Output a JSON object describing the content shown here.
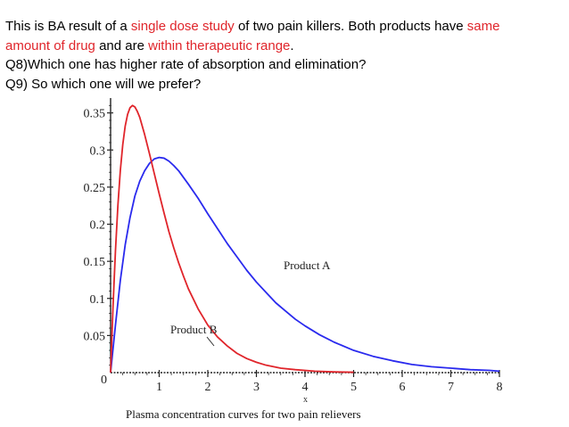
{
  "slide": {
    "line1": {
      "before": "This is BA result of a ",
      "hl1": "single dose study",
      "middle": " of two pain killers. Both products have ",
      "hl2": "same"
    },
    "line2": {
      "hl1": "amount of drug",
      "middle": " and are ",
      "hl2": "within therapeutic range",
      "after": "."
    },
    "line3": "Q8)Which one has higher rate of absorption and elimination?",
    "line4": "Q9) So which one will we prefer?",
    "highlight_color": "#e0252b"
  },
  "chart_data": {
    "type": "line",
    "caption": "Plasma concentration curves for two pain relievers",
    "xlabel": "x",
    "ylabel": "",
    "xlim": [
      0,
      8
    ],
    "ylim": [
      0,
      0.37
    ],
    "x_ticks": [
      "1",
      "2",
      "3",
      "4",
      "5",
      "6",
      "7",
      "8"
    ],
    "x_origin_label": "0",
    "y_ticks": [
      "0.05",
      "0.1",
      "0.15",
      "0.2",
      "0.25",
      "0.3",
      "0.35"
    ],
    "grid": false,
    "series": [
      {
        "name": "Product A",
        "color": "#2a2aee",
        "x": [
          0,
          0.1,
          0.2,
          0.3,
          0.4,
          0.5,
          0.6,
          0.7,
          0.8,
          0.9,
          1.0,
          1.1,
          1.2,
          1.3,
          1.4,
          1.5,
          1.6,
          1.8,
          2.0,
          2.2,
          2.4,
          2.6,
          2.8,
          3.0,
          3.2,
          3.4,
          3.6,
          3.8,
          4.0,
          4.3,
          4.6,
          5.0,
          5.4,
          5.8,
          6.2,
          6.6,
          7.0,
          7.4,
          7.8,
          8.0
        ],
        "values": [
          0,
          0.064,
          0.124,
          0.172,
          0.209,
          0.238,
          0.258,
          0.272,
          0.282,
          0.288,
          0.29,
          0.289,
          0.285,
          0.279,
          0.272,
          0.263,
          0.254,
          0.235,
          0.214,
          0.194,
          0.174,
          0.156,
          0.138,
          0.122,
          0.108,
          0.094,
          0.083,
          0.072,
          0.063,
          0.051,
          0.041,
          0.03,
          0.022,
          0.016,
          0.011,
          0.008,
          0.006,
          0.004,
          0.003,
          0.002
        ]
      },
      {
        "name": "Product B",
        "color": "#e0252b",
        "x": [
          0,
          0.05,
          0.1,
          0.15,
          0.2,
          0.25,
          0.3,
          0.35,
          0.4,
          0.45,
          0.5,
          0.55,
          0.6,
          0.7,
          0.8,
          0.9,
          1.0,
          1.1,
          1.2,
          1.3,
          1.4,
          1.5,
          1.6,
          1.8,
          2.0,
          2.2,
          2.4,
          2.6,
          2.8,
          3.0,
          3.2,
          3.5,
          3.8,
          4.2,
          4.6,
          5.0
        ],
        "values": [
          0,
          0.089,
          0.164,
          0.225,
          0.272,
          0.307,
          0.332,
          0.348,
          0.357,
          0.36,
          0.358,
          0.352,
          0.344,
          0.321,
          0.295,
          0.268,
          0.241,
          0.215,
          0.19,
          0.168,
          0.148,
          0.13,
          0.113,
          0.086,
          0.064,
          0.048,
          0.036,
          0.026,
          0.019,
          0.014,
          0.01,
          0.006,
          0.004,
          0.002,
          0.001,
          0.0005
        ]
      }
    ]
  }
}
